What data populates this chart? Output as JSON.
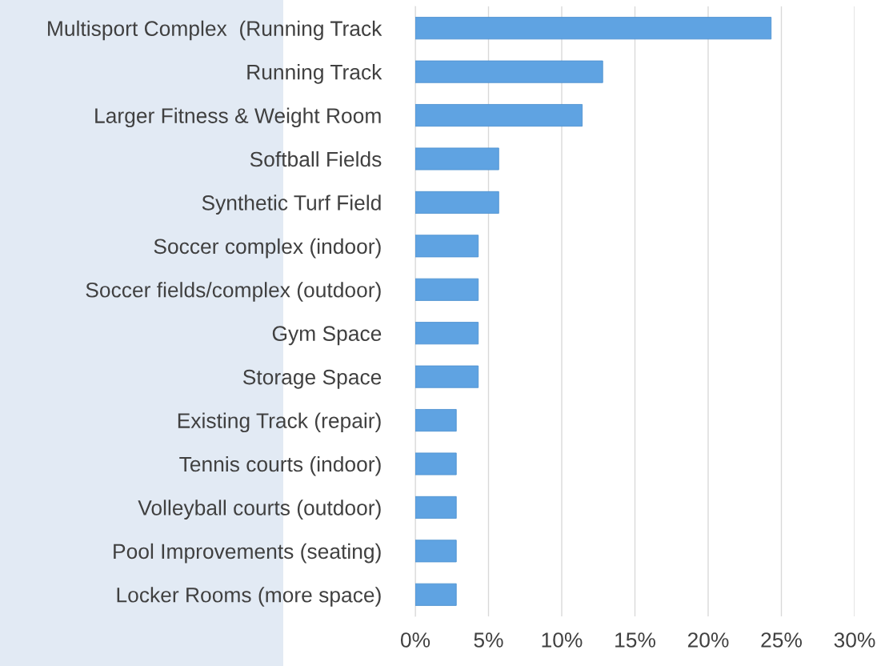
{
  "chart_data": {
    "type": "bar",
    "orientation": "horizontal",
    "categories": [
      "Multisport Complex  (Running Track",
      "Running Track",
      "Larger Fitness & Weight Room",
      "Softball Fields",
      "Synthetic Turf Field",
      "Soccer complex (indoor)",
      "Soccer fields/complex (outdoor)",
      "Gym Space",
      "Storage Space",
      "Existing Track (repair)",
      "Tennis courts (indoor)",
      "Volleyball courts (outdoor)",
      "Pool Improvements (seating)",
      "Locker Rooms (more space)"
    ],
    "values": [
      24.3,
      12.8,
      11.4,
      5.7,
      5.7,
      4.3,
      4.3,
      4.3,
      4.3,
      2.8,
      2.8,
      2.8,
      2.8,
      2.8
    ],
    "color": "#5fa3e2",
    "xlim": [
      0,
      30
    ],
    "xticks": [
      {
        "value": 0,
        "label": "0%"
      },
      {
        "value": 5,
        "label": "5%"
      },
      {
        "value": 10,
        "label": "10%"
      },
      {
        "value": 15,
        "label": "15%"
      },
      {
        "value": 20,
        "label": "20%"
      },
      {
        "value": 25,
        "label": "25%"
      },
      {
        "value": 30,
        "label": "30%"
      }
    ],
    "grid": "x",
    "legend": false
  }
}
